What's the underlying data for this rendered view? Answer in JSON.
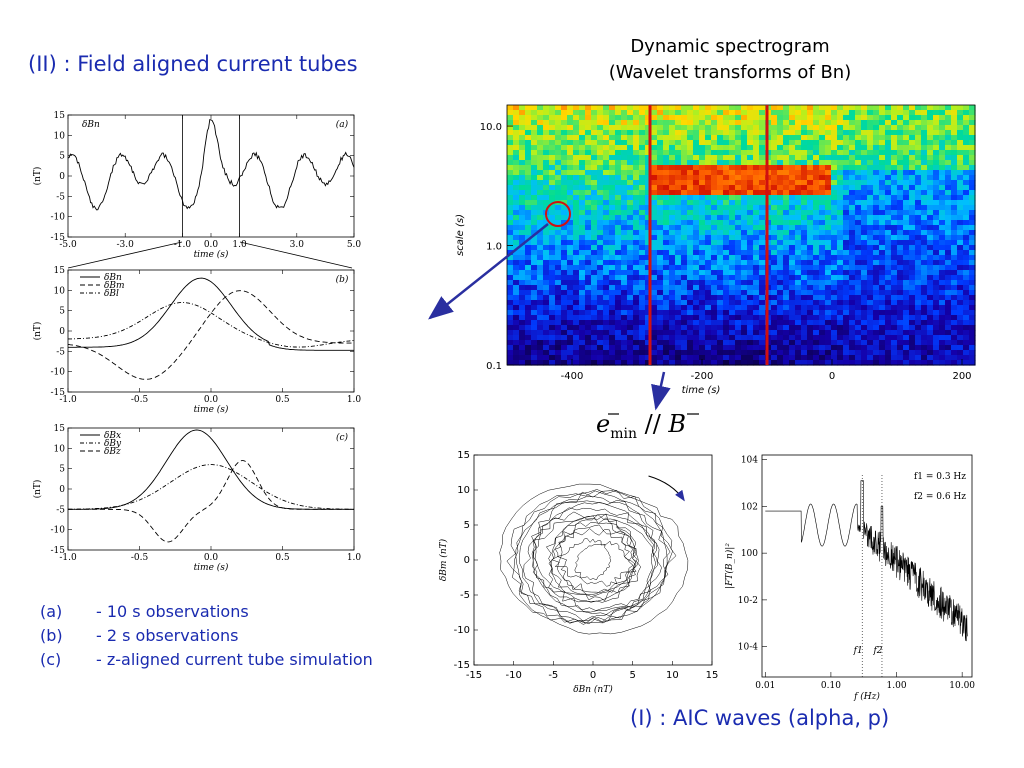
{
  "headings": {
    "section_ii": "(II) : Field aligned current tubes",
    "spectrogram_title_1": "Dynamic spectrogram",
    "spectrogram_title_2": "(Wavelet transforms of Bn)",
    "section_i": "(I) : AIC waves (alpha, p)",
    "emin_label": "e_min // B"
  },
  "caption_list": [
    {
      "key": "(a)",
      "text": "- 10 s observations"
    },
    {
      "key": "(b)",
      "text": "- 2 s observations"
    },
    {
      "key": "(c)",
      "text": "- z-aligned current tube simulation"
    }
  ],
  "colors": {
    "heading_blue": "#1a2bb0",
    "marker_red": "#d01010",
    "arrow_blue": "#2a2fa0"
  },
  "chart_data": [
    {
      "id": "panel-a",
      "type": "line",
      "panel_tag": "(a)",
      "series": [
        {
          "name": "δBn",
          "style": "solid"
        }
      ],
      "xlim": [
        -5.0,
        5.0
      ],
      "x_ticks": [
        "-5.0",
        "-3.0",
        "-1.0",
        "0.0",
        "1.0",
        "3.0",
        "5.0"
      ],
      "ylim": [
        -15,
        15
      ],
      "y_ticks": [
        "15",
        "10",
        "5",
        "0",
        "-5",
        "-10",
        "-15"
      ],
      "xlabel": "time (s)",
      "ylabel": "(nT)",
      "vertical_markers": [
        -1.0,
        1.0
      ]
    },
    {
      "id": "panel-b",
      "type": "line",
      "panel_tag": "(b)",
      "series": [
        {
          "name": "δBn",
          "style": "solid"
        },
        {
          "name": "δBm",
          "style": "dashed"
        },
        {
          "name": "δBl",
          "style": "dashdot"
        }
      ],
      "xlim": [
        -1.0,
        1.0
      ],
      "x_ticks": [
        "-1.0",
        "-0.5",
        "0.0",
        "0.5",
        "1.0"
      ],
      "ylim": [
        -15,
        15
      ],
      "y_ticks": [
        "15",
        "10",
        "5",
        "0",
        "-5",
        "-10",
        "-15"
      ],
      "xlabel": "time (s)",
      "ylabel": "(nT)"
    },
    {
      "id": "panel-c",
      "type": "line",
      "panel_tag": "(c)",
      "series": [
        {
          "name": "δBx",
          "style": "solid"
        },
        {
          "name": "δBy",
          "style": "dashdot"
        },
        {
          "name": "δBz",
          "style": "dashed"
        }
      ],
      "xlim": [
        -1.0,
        1.0
      ],
      "x_ticks": [
        "-1.0",
        "-0.5",
        "0.0",
        "0.5",
        "1.0"
      ],
      "ylim": [
        -15,
        15
      ],
      "y_ticks": [
        "15",
        "10",
        "5",
        "0",
        "-5",
        "-10",
        "-15"
      ],
      "xlabel": "time (s)",
      "ylabel": "(nT)"
    },
    {
      "id": "spectrogram",
      "type": "heatmap",
      "xlim": [
        -500,
        220
      ],
      "x_ticks": [
        "-400",
        "-200",
        "0",
        "200"
      ],
      "y_scale": "log",
      "ylim": [
        0.1,
        15
      ],
      "y_ticks": [
        "10.0",
        "1.0",
        "0.1"
      ],
      "xlabel": "time (s)",
      "ylabel": "scale (s)",
      "vertical_markers": [
        -280,
        -100
      ]
    },
    {
      "id": "hodogram",
      "type": "line",
      "xlim": [
        -15,
        15
      ],
      "ylim": [
        -15,
        15
      ],
      "x_ticks": [
        "-15",
        "-10",
        "-5",
        "0",
        "5",
        "10",
        "15"
      ],
      "y_ticks": [
        "15",
        "10",
        "5",
        "0",
        "-5",
        "-10",
        "-15"
      ],
      "xlabel": "δBn (nT)",
      "ylabel": "δBm (nT)"
    },
    {
      "id": "power-spectrum",
      "type": "line",
      "x_scale": "log",
      "y_scale": "log",
      "x_ticks": [
        "0.01",
        "0.10",
        "1.00",
        "10.00"
      ],
      "y_ticks": [
        "10^4",
        "10^2",
        "10^0",
        "10^-2",
        "10^-4"
      ],
      "xlabel": "f (Hz)",
      "ylabel": "|FT(B_n)|²",
      "marked_frequencies": [
        {
          "tag": "f1",
          "label": "f1 = 0.3 Hz",
          "value": 0.3
        },
        {
          "tag": "f2",
          "label": "f2 = 0.6 Hz",
          "value": 0.6
        }
      ]
    }
  ]
}
